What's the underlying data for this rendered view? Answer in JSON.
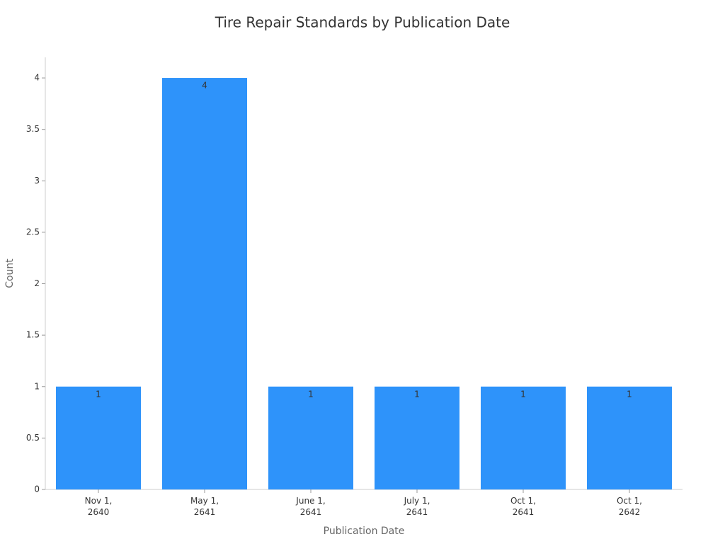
{
  "chart_data": {
    "type": "bar",
    "title": "Tire Repair Standards by Publication Date",
    "x_label": "Publication Date",
    "y_label": "Count",
    "categories": [
      "Nov 1, 2640",
      "May 1, 2641",
      "June 1, 2641",
      "July 1, 2641",
      "Oct 1, 2641",
      "Oct 1, 2642"
    ],
    "values": [
      1,
      4,
      1,
      1,
      1,
      1
    ],
    "color": "#2e93fa",
    "ylim": [
      0,
      4.2
    ],
    "yticks": [
      0,
      0.5,
      1,
      1.5,
      2,
      2.5,
      3,
      3.5,
      4
    ],
    "grid": false
  }
}
